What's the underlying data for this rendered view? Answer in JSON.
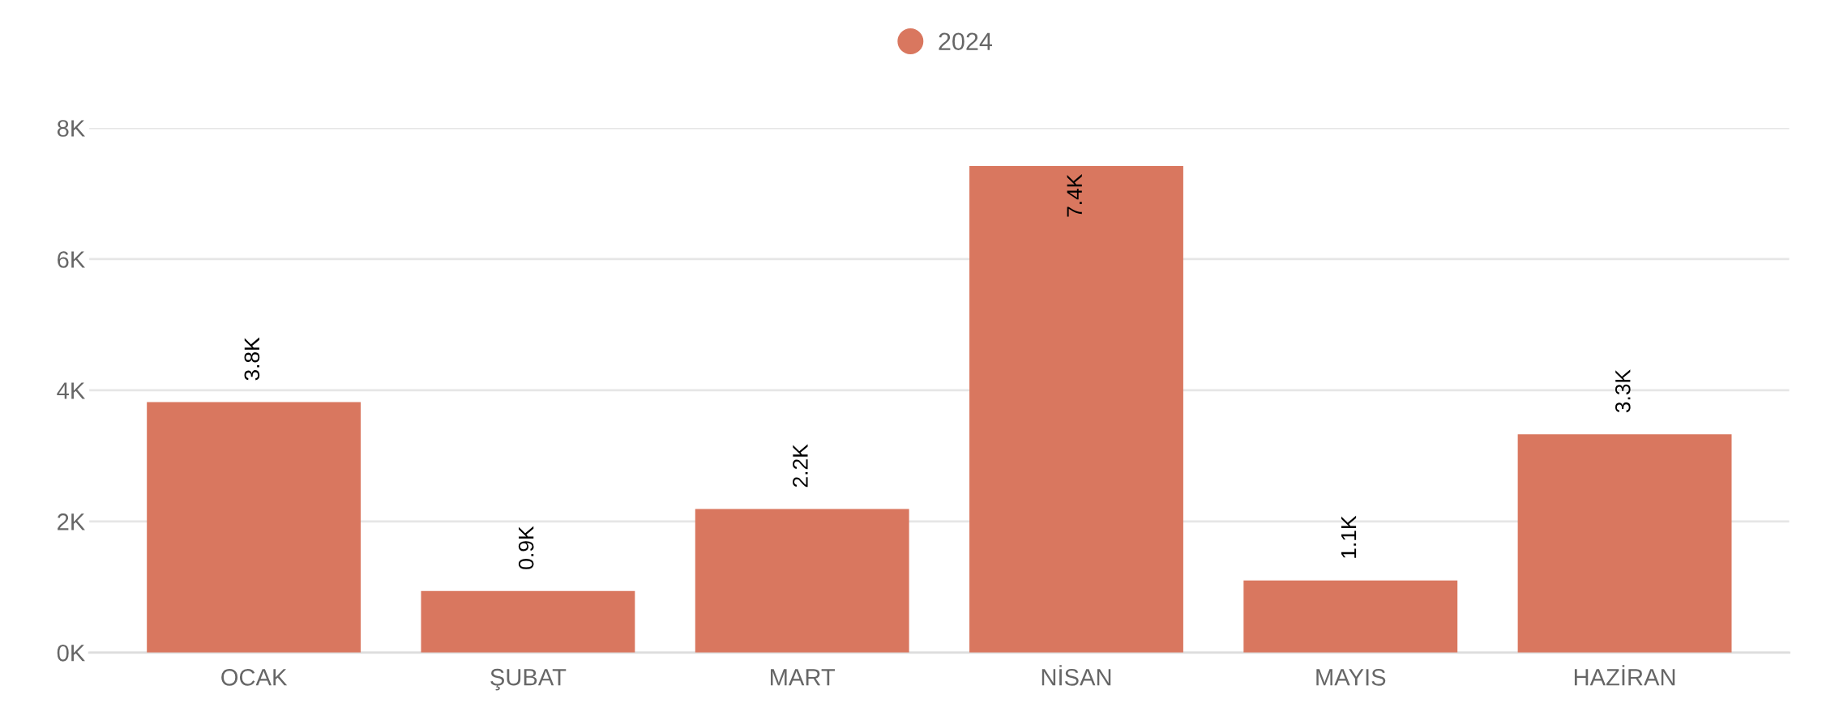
{
  "chart_data": {
    "type": "bar",
    "categories": [
      "OCAK",
      "ŞUBAT",
      "MART",
      "NİSAN",
      "MAYIS",
      "HAZİRAN"
    ],
    "series": [
      {
        "name": "2024",
        "color": "#d9775f",
        "values": [
          3820,
          940,
          2190,
          7420,
          1100,
          3330
        ],
        "value_labels": [
          "3.8K",
          "0.9K",
          "2.2K",
          "7.4K",
          "1.1K",
          "3.3K"
        ]
      }
    ],
    "ylim": [
      0,
      8000
    ],
    "yticks": [
      {
        "value": 0,
        "label": "0K"
      },
      {
        "value": 2000,
        "label": "2K"
      },
      {
        "value": 4000,
        "label": "4K"
      },
      {
        "value": 6000,
        "label": "6K"
      },
      {
        "value": 8000,
        "label": "8K"
      }
    ],
    "grid": "y",
    "legend": "top",
    "marker": "circle"
  }
}
